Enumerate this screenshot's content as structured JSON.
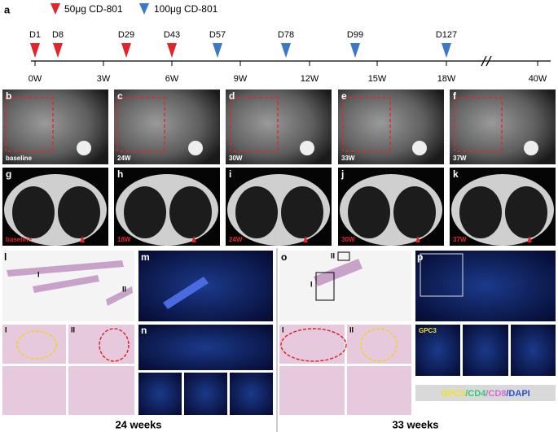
{
  "panel_a": "a",
  "legend": [
    "50μg  CD-801",
    "100μg  CD-801"
  ],
  "timeline": {
    "doses": [
      "D1",
      "D8",
      "D29",
      "D43",
      "D57",
      "D78",
      "D99",
      "D127"
    ],
    "ticks": [
      "0W",
      "3W",
      "6W",
      "9W",
      "12W",
      "15W",
      "18W",
      "40W"
    ]
  },
  "mri_panels": [
    {
      "letter": "b",
      "label": "baseline"
    },
    {
      "letter": "c",
      "label": "24W"
    },
    {
      "letter": "d",
      "label": "30W"
    },
    {
      "letter": "e",
      "label": "33W"
    },
    {
      "letter": "f",
      "label": "37W"
    }
  ],
  "ct_panels": [
    {
      "letter": "g",
      "label": "baseline"
    },
    {
      "letter": "h",
      "label": "18W"
    },
    {
      "letter": "i",
      "label": "24W"
    },
    {
      "letter": "j",
      "label": "30W"
    },
    {
      "letter": "k",
      "label": "37W"
    }
  ],
  "histology": {
    "letters": [
      "l",
      "m",
      "n",
      "o",
      "p"
    ],
    "roman": [
      "I",
      "II"
    ],
    "gpc3": "GPC3",
    "stain_legend": [
      "GPC3",
      "/CD4",
      "/CD8",
      "/DAPI"
    ]
  },
  "footer": [
    "24 weeks",
    "33 weeks"
  ]
}
